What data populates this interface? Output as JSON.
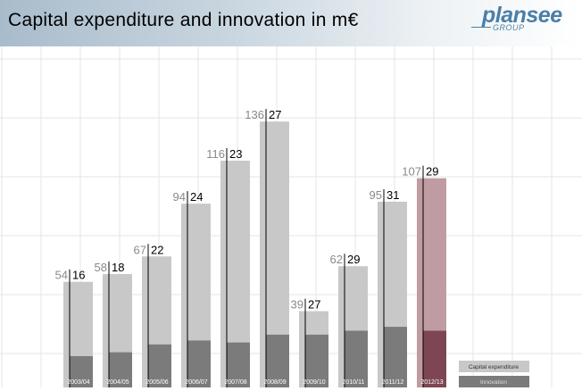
{
  "title": "Capital expenditure and innovation in m€",
  "logo": {
    "word": "plansee",
    "group": "GROUP"
  },
  "chart_data": {
    "type": "bar",
    "categories": [
      "2003/04",
      "2004/05",
      "2005/06",
      "2006/07",
      "2007/08",
      "2008/09",
      "2009/10",
      "2010/11",
      "2011/12",
      "2012/13"
    ],
    "series": [
      {
        "name": "Capital expenditure",
        "values": [
          54,
          58,
          67,
          94,
          116,
          136,
          39,
          62,
          95,
          107
        ]
      },
      {
        "name": "Innovation",
        "values": [
          16,
          18,
          22,
          24,
          23,
          27,
          27,
          29,
          31,
          29
        ]
      }
    ],
    "ylim": [
      0,
      140
    ],
    "highlight_category": "2012/13",
    "legend_position": "bottom-right",
    "grid": true,
    "colors": {
      "capex": "#c8c8c8",
      "innovation": "#7b7b7b",
      "capex_highlight": "#bf9ca1",
      "innovation_highlight": "#7d4652",
      "capex_label": "#8a8a8a",
      "innovation_label": "#000000",
      "grid": "#e6e6e6",
      "legend_capex": "#c8c8c8",
      "legend_innovation": "#7b7b7b"
    }
  }
}
